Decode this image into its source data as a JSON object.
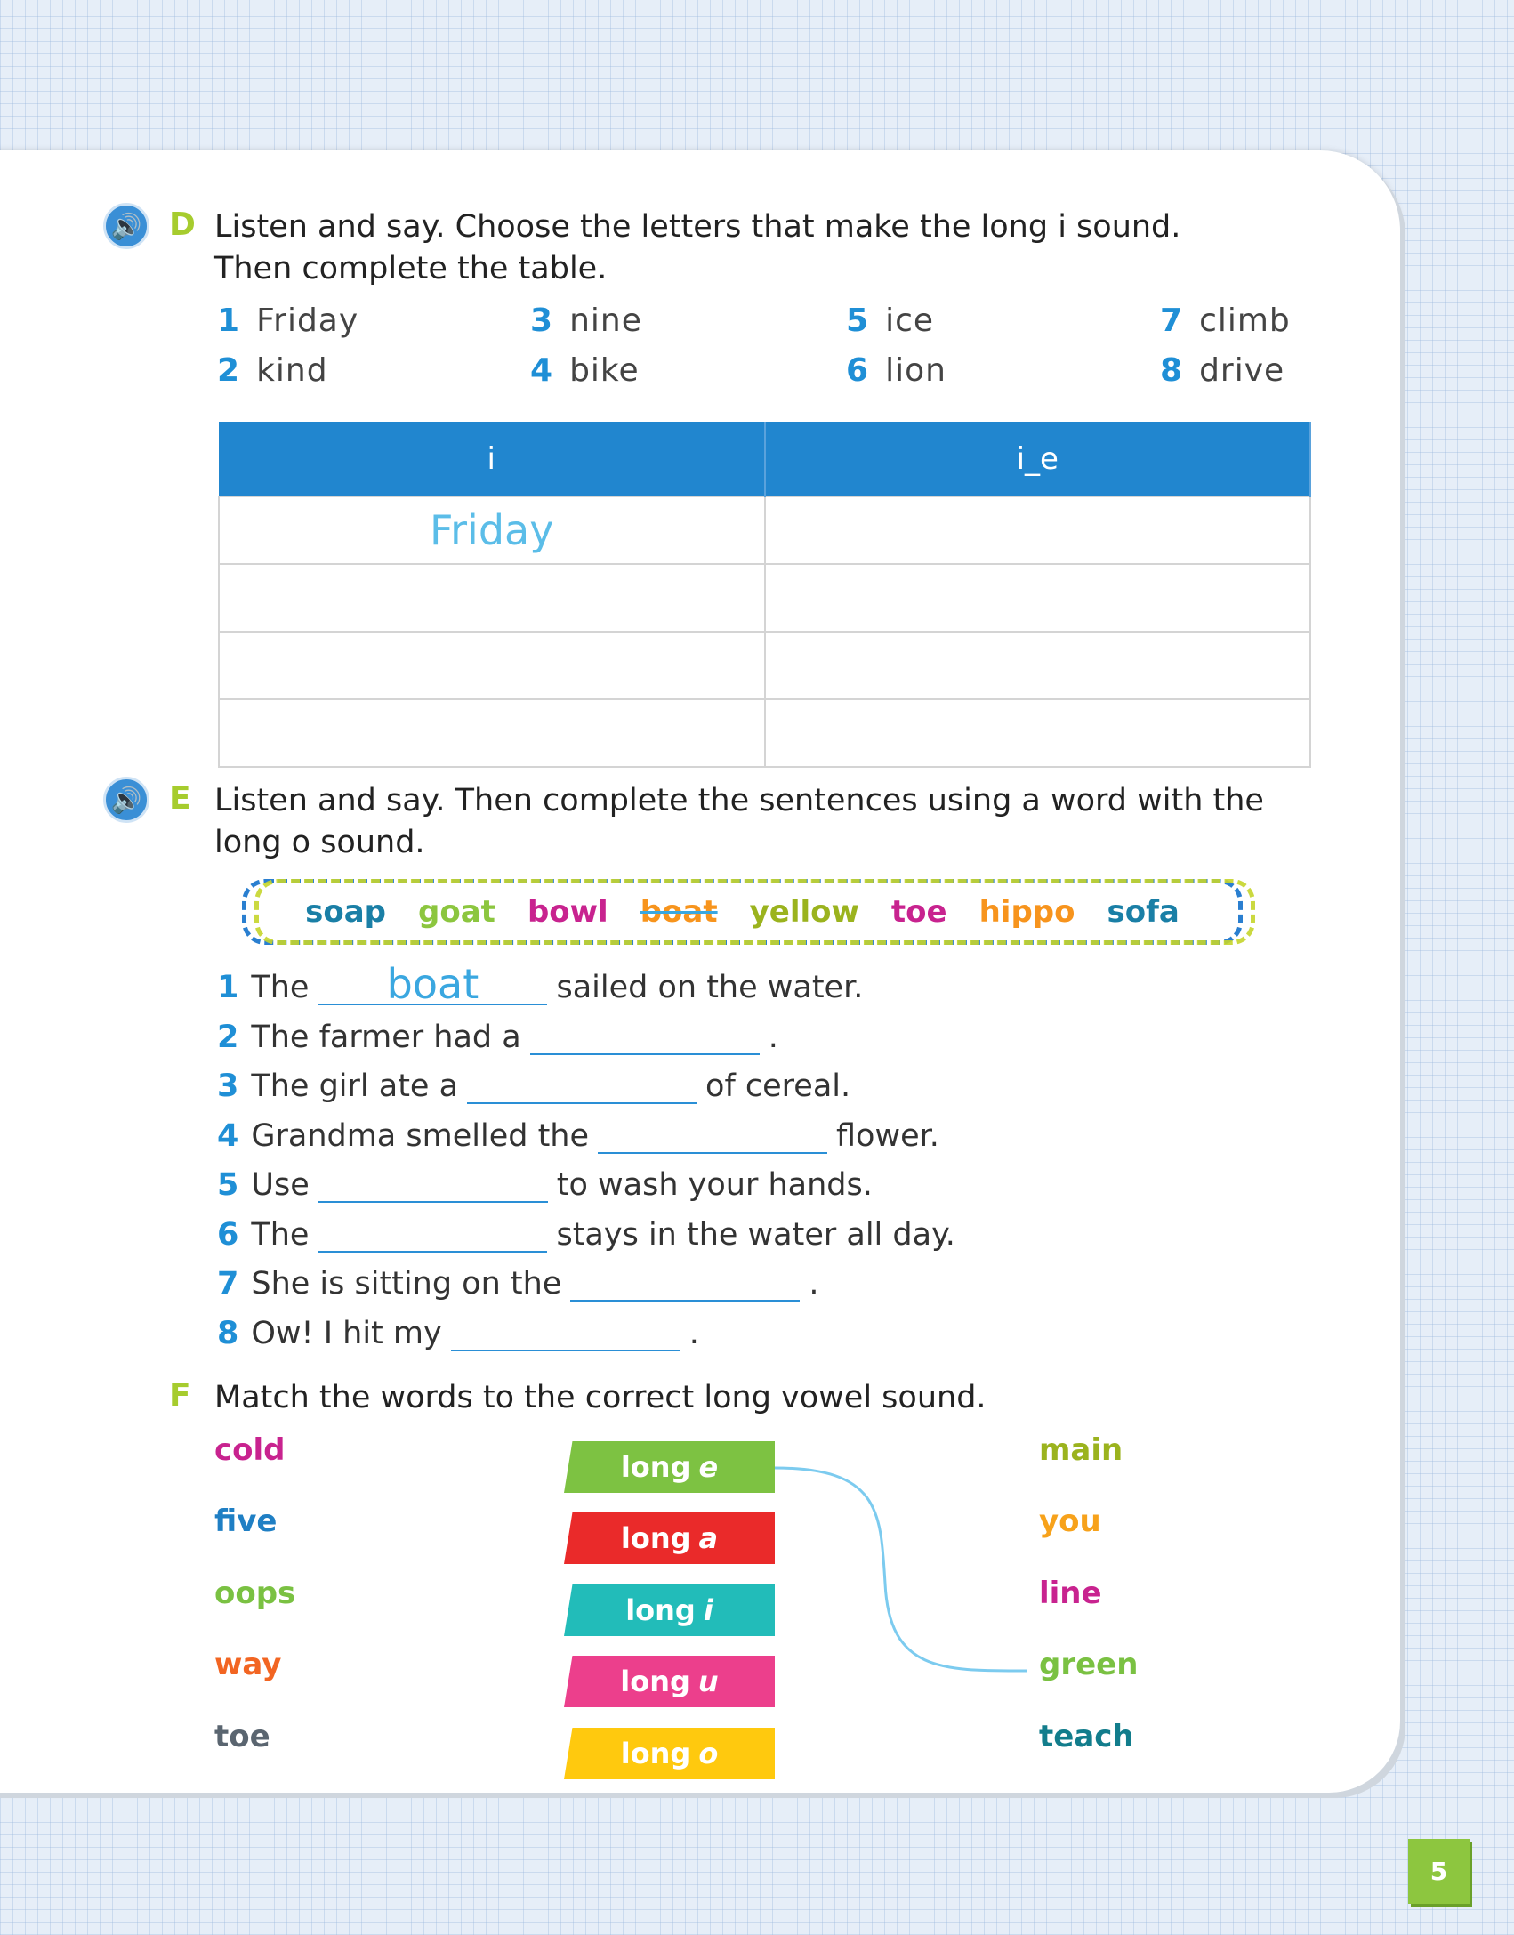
{
  "sectionD": {
    "letter": "D",
    "line1": "Listen and say. Choose the letters that make the long i sound.",
    "line2": "Then complete the table.",
    "words": [
      {
        "n": "1",
        "w": "Friday"
      },
      {
        "n": "2",
        "w": "kind"
      },
      {
        "n": "3",
        "w": "nine"
      },
      {
        "n": "4",
        "w": "bike"
      },
      {
        "n": "5",
        "w": "ice"
      },
      {
        "n": "6",
        "w": "lion"
      },
      {
        "n": "7",
        "w": "climb"
      },
      {
        "n": "8",
        "w": "drive"
      }
    ],
    "table": {
      "headers": [
        "i",
        "i_e"
      ],
      "rows": [
        [
          "Friday",
          ""
        ],
        [
          "",
          ""
        ],
        [
          "",
          ""
        ],
        [
          "",
          ""
        ]
      ]
    }
  },
  "sectionE": {
    "letter": "E",
    "line1": "Listen and say. Then complete the sentences using a word with the",
    "line2": "long o sound.",
    "words": [
      {
        "w": "soap",
        "color": "#1a7fa6"
      },
      {
        "w": "goat",
        "color": "#8cc63f"
      },
      {
        "w": "bowl",
        "color": "#c8238f"
      },
      {
        "w": "boat",
        "color": "#f7941d",
        "crossed": true
      },
      {
        "w": "yellow",
        "color": "#9bb31e"
      },
      {
        "w": "toe",
        "color": "#c8238f"
      },
      {
        "w": "hippo",
        "color": "#f7941d"
      },
      {
        "w": "sofa",
        "color": "#1a7fa6"
      }
    ],
    "sentences": [
      {
        "n": "1",
        "a": "The",
        "ans": "boat",
        "b": "sailed on the water."
      },
      {
        "n": "2",
        "a": "The farmer had a",
        "ans": "",
        "b": "."
      },
      {
        "n": "3",
        "a": "The girl ate a",
        "ans": "",
        "b": "of cereal."
      },
      {
        "n": "4",
        "a": "Grandma smelled the",
        "ans": "",
        "b": "flower."
      },
      {
        "n": "5",
        "a": "Use",
        "ans": "",
        "b": "to wash your hands."
      },
      {
        "n": "6",
        "a": "The",
        "ans": "",
        "b": "stays in the water all day."
      },
      {
        "n": "7",
        "a": "She is sitting on the",
        "ans": "",
        "b": "."
      },
      {
        "n": "8",
        "a": "Ow! I hit my",
        "ans": "",
        "b": "."
      }
    ]
  },
  "sectionF": {
    "letter": "F",
    "instruction": "Match the words to the correct long vowel sound.",
    "left": [
      {
        "w": "cold",
        "color": "#c8238f"
      },
      {
        "w": "five",
        "color": "#1f7fc4"
      },
      {
        "w": "oops",
        "color": "#7ac142"
      },
      {
        "w": "way",
        "color": "#f26522"
      },
      {
        "w": "toe",
        "color": "#5a6570"
      }
    ],
    "labels": [
      {
        "t": "long",
        "v": "e",
        "color": "#7dc242"
      },
      {
        "t": "long",
        "v": "a",
        "color": "#ea2a2a"
      },
      {
        "t": "long",
        "v": "i",
        "color": "#22bcb9"
      },
      {
        "t": "long",
        "v": "u",
        "color": "#ec3f8c"
      },
      {
        "t": "long",
        "v": "o",
        "color": "#ffc90e"
      }
    ],
    "right": [
      {
        "w": "main",
        "color": "#9bb31e"
      },
      {
        "w": "you",
        "color": "#f7a21b"
      },
      {
        "w": "line",
        "color": "#c8238f"
      },
      {
        "w": "green",
        "color": "#7ac142"
      },
      {
        "w": "teach",
        "color": "#127d8c"
      }
    ]
  },
  "page_number": "5"
}
